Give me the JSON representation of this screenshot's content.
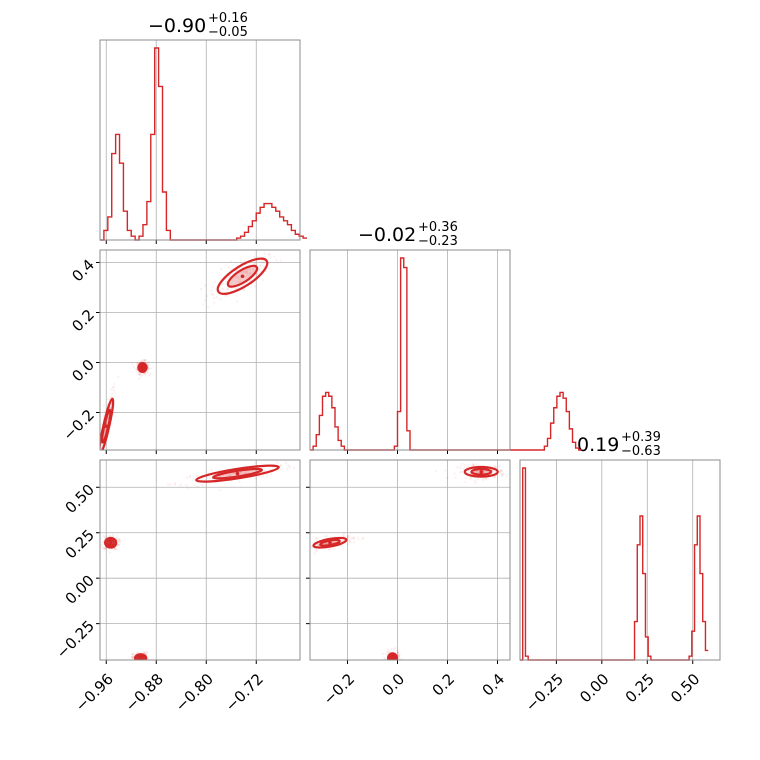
{
  "chart_data": {
    "type": "corner",
    "color": "#d62728",
    "parameters": [
      {
        "index": 0,
        "median": "−0.90",
        "plus": "+0.16",
        "minus": "−0.05",
        "range": [
          -0.97,
          -0.65
        ]
      },
      {
        "index": 1,
        "median": "−0.02",
        "plus": "+0.36",
        "minus": "−0.23",
        "range": [
          -0.35,
          0.45
        ]
      },
      {
        "index": 2,
        "median": "0.19",
        "plus": "+0.39",
        "minus": "−0.63",
        "range": [
          -0.45,
          0.65
        ]
      }
    ],
    "ticks": {
      "p0": {
        "values": [
          -0.96,
          -0.88,
          -0.8,
          -0.72
        ],
        "labels": [
          "−0.96",
          "−0.88",
          "−0.80",
          "−0.72"
        ]
      },
      "p1": {
        "values": [
          -0.2,
          0.0,
          0.2,
          0.4
        ],
        "labels": [
          "−0.2",
          "0.0",
          "0.2",
          "0.4"
        ]
      },
      "p2": {
        "values": [
          -0.25,
          0.0,
          0.25,
          0.5
        ],
        "labels": [
          "−0.25",
          "0.00",
          "0.25",
          "0.50"
        ]
      }
    },
    "y_ticks_p1": {
      "values": [
        -0.2,
        0.0,
        0.2,
        0.4
      ],
      "labels": [
        "−0.2",
        "0.0",
        "0.2",
        "0.4"
      ]
    },
    "y_ticks_p2": {
      "values": [
        -0.25,
        0.0,
        0.25,
        0.5
      ],
      "labels": [
        "−0.25",
        "0.00",
        "0.25",
        "0.50"
      ]
    },
    "histograms": {
      "p0": {
        "bin_edges_start": -0.97,
        "bin_width": 0.00625,
        "counts": [
          0,
          5,
          12,
          45,
          55,
          40,
          15,
          5,
          2,
          0,
          2,
          8,
          20,
          55,
          100,
          80,
          25,
          5,
          0,
          0,
          0,
          0,
          0,
          0,
          0,
          0,
          0,
          0,
          0,
          0,
          0,
          0,
          0,
          0,
          0,
          1,
          2,
          4,
          7,
          10,
          14,
          17,
          19,
          19,
          17,
          15,
          12,
          10,
          8,
          5,
          3,
          2,
          1
        ]
      },
      "p1": {
        "bin_edges_start": -0.35,
        "bin_width": 0.0125,
        "counts": [
          0,
          2,
          8,
          18,
          28,
          30,
          28,
          22,
          12,
          5,
          2,
          0,
          0,
          0,
          0,
          0,
          0,
          0,
          0,
          0,
          0,
          0,
          0,
          0,
          0,
          0,
          0,
          2,
          20,
          100,
          95,
          10,
          0,
          0,
          0,
          0,
          0,
          0,
          0,
          0,
          0,
          0,
          0,
          0,
          0,
          0,
          0,
          0,
          0,
          0,
          0,
          0,
          0,
          0,
          0,
          0,
          0,
          0,
          0,
          0,
          0,
          0,
          0,
          0,
          0,
          0,
          0,
          0,
          0,
          0,
          0,
          0,
          0,
          0,
          0,
          2,
          6,
          14,
          22,
          28,
          30,
          27,
          20,
          11,
          4,
          1,
          0
        ]
      },
      "p2": {
        "bin_edges_start": -0.45,
        "bin_width": 0.015,
        "counts": [
          0,
          100,
          2,
          0,
          0,
          0,
          0,
          0,
          0,
          0,
          0,
          0,
          0,
          0,
          0,
          0,
          0,
          0,
          0,
          0,
          0,
          0,
          0,
          0,
          0,
          0,
          0,
          0,
          0,
          0,
          0,
          0,
          0,
          0,
          0,
          0,
          0,
          0,
          0,
          0,
          0,
          0,
          20,
          60,
          75,
          45,
          12,
          2,
          0,
          0,
          0,
          0,
          0,
          0,
          0,
          0,
          0,
          0,
          0,
          0,
          0,
          0,
          2,
          15,
          60,
          75,
          45,
          20,
          5
        ]
      }
    },
    "modes_2d": {
      "p1_vs_p0": [
        {
          "center": [
            -0.742,
            0.345
          ],
          "sd": [
            0.018,
            0.032
          ],
          "rho": 0.75
        },
        {
          "center": [
            -0.902,
            -0.02
          ],
          "sd": [
            0.003,
            0.008
          ],
          "rho": 0.0
        },
        {
          "center": [
            -0.96,
            -0.255
          ],
          "sd": [
            0.005,
            0.05
          ],
          "rho": 0.9
        }
      ],
      "p2_vs_p0": [
        {
          "center": [
            -0.75,
            0.575
          ],
          "sd": [
            0.03,
            0.02
          ],
          "rho": 0.8
        },
        {
          "center": [
            -0.953,
            0.195
          ],
          "sd": [
            0.004,
            0.012
          ],
          "rho": 0.0
        },
        {
          "center": [
            -0.905,
            -0.44
          ],
          "sd": [
            0.004,
            0.01
          ],
          "rho": 0.0
        }
      ],
      "p2_vs_p1": [
        {
          "center": [
            0.335,
            0.585
          ],
          "sd": [
            0.03,
            0.012
          ],
          "rho": 0.0
        },
        {
          "center": [
            -0.27,
            0.195
          ],
          "sd": [
            0.03,
            0.012
          ],
          "rho": 0.6
        },
        {
          "center": [
            -0.02,
            -0.44
          ],
          "sd": [
            0.008,
            0.012
          ],
          "rho": 0.0
        }
      ]
    }
  }
}
